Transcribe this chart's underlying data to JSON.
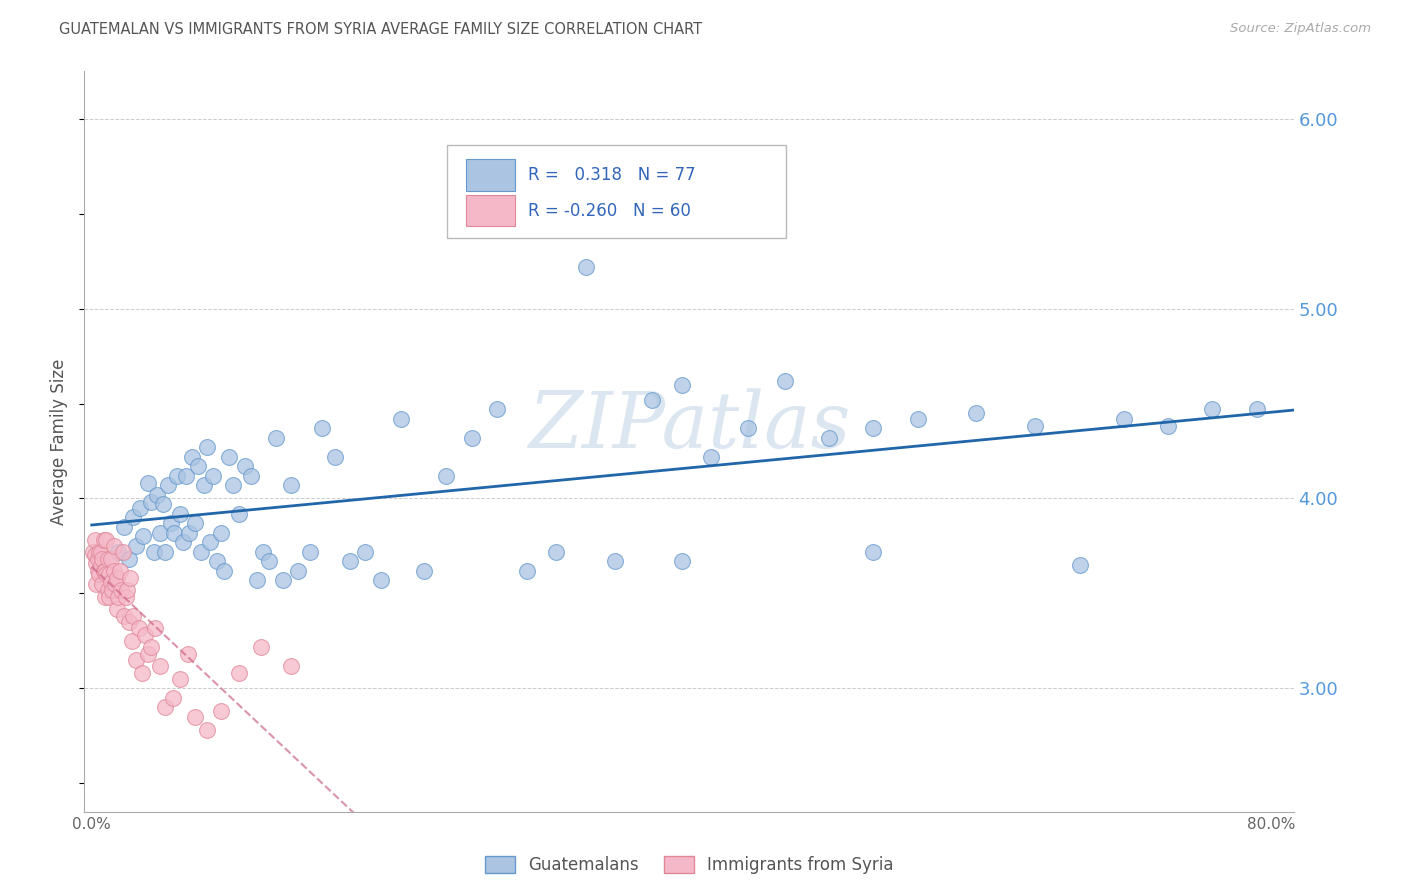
{
  "title": "GUATEMALAN VS IMMIGRANTS FROM SYRIA AVERAGE FAMILY SIZE CORRELATION CHART",
  "source_text": "Source: ZipAtlas.com",
  "ylabel": "Average Family Size",
  "xmin": -0.005,
  "xmax": 0.815,
  "ymin": 2.35,
  "ymax": 6.25,
  "yticks": [
    3.0,
    4.0,
    5.0,
    6.0
  ],
  "xticks": [
    0.0,
    0.1,
    0.2,
    0.3,
    0.4,
    0.5,
    0.6,
    0.7,
    0.8
  ],
  "xtick_labels": [
    "0.0%",
    "",
    "",
    "",
    "",
    "",
    "",
    "",
    "80.0%"
  ],
  "blue_r": "0.318",
  "blue_n": "77",
  "pink_r": "-0.260",
  "pink_n": "60",
  "blue_color": "#aac4e2",
  "blue_edge_color": "#6699cc",
  "blue_line_color": "#2266aa",
  "pink_color": "#f5b8c8",
  "pink_edge_color": "#e08898",
  "pink_line_color": "#cc6688",
  "background_color": "#ffffff",
  "grid_color": "#cccccc",
  "title_color": "#555555",
  "right_axis_color": "#5599dd",
  "legend_text_color": "#3366bb",
  "watermark_color": "#dce6f0",
  "legend_label_blue": "Guatemalans",
  "legend_label_pink": "Immigrants from Syria",
  "blue_x": [
    0.018,
    0.022,
    0.025,
    0.028,
    0.03,
    0.033,
    0.035,
    0.038,
    0.04,
    0.042,
    0.044,
    0.046,
    0.048,
    0.05,
    0.052,
    0.054,
    0.056,
    0.058,
    0.06,
    0.062,
    0.064,
    0.066,
    0.068,
    0.07,
    0.072,
    0.074,
    0.076,
    0.078,
    0.08,
    0.082,
    0.085,
    0.088,
    0.09,
    0.093,
    0.096,
    0.1,
    0.104,
    0.108,
    0.112,
    0.116,
    0.12,
    0.125,
    0.13,
    0.135,
    0.14,
    0.148,
    0.156,
    0.165,
    0.175,
    0.185,
    0.196,
    0.21,
    0.225,
    0.24,
    0.258,
    0.275,
    0.295,
    0.315,
    0.335,
    0.355,
    0.38,
    0.4,
    0.42,
    0.445,
    0.47,
    0.5,
    0.53,
    0.56,
    0.4,
    0.53,
    0.6,
    0.64,
    0.67,
    0.7,
    0.73,
    0.76,
    0.79
  ],
  "blue_y": [
    3.72,
    3.85,
    3.68,
    3.9,
    3.75,
    3.95,
    3.8,
    4.08,
    3.98,
    3.72,
    4.02,
    3.82,
    3.97,
    3.72,
    4.07,
    3.87,
    3.82,
    4.12,
    3.92,
    3.77,
    4.12,
    3.82,
    4.22,
    3.87,
    4.17,
    3.72,
    4.07,
    4.27,
    3.77,
    4.12,
    3.67,
    3.82,
    3.62,
    4.22,
    4.07,
    3.92,
    4.17,
    4.12,
    3.57,
    3.72,
    3.67,
    4.32,
    3.57,
    4.07,
    3.62,
    3.72,
    4.37,
    4.22,
    3.67,
    3.72,
    3.57,
    4.42,
    3.62,
    4.12,
    4.32,
    4.47,
    3.62,
    3.72,
    5.22,
    3.67,
    4.52,
    3.67,
    4.22,
    4.37,
    4.62,
    4.32,
    4.37,
    4.42,
    4.6,
    3.72,
    4.45,
    4.38,
    3.65,
    4.42,
    4.38,
    4.47,
    4.47
  ],
  "pink_x": [
    0.001,
    0.002,
    0.002,
    0.003,
    0.003,
    0.004,
    0.004,
    0.005,
    0.005,
    0.006,
    0.006,
    0.007,
    0.007,
    0.008,
    0.008,
    0.009,
    0.009,
    0.01,
    0.01,
    0.011,
    0.011,
    0.012,
    0.012,
    0.013,
    0.013,
    0.014,
    0.015,
    0.015,
    0.016,
    0.017,
    0.017,
    0.018,
    0.019,
    0.02,
    0.021,
    0.022,
    0.023,
    0.024,
    0.025,
    0.026,
    0.027,
    0.028,
    0.03,
    0.032,
    0.034,
    0.036,
    0.038,
    0.04,
    0.043,
    0.046,
    0.05,
    0.055,
    0.06,
    0.065,
    0.07,
    0.078,
    0.088,
    0.1,
    0.115,
    0.135
  ],
  "pink_y": [
    3.72,
    3.7,
    3.78,
    3.66,
    3.55,
    3.62,
    3.68,
    3.72,
    3.6,
    3.72,
    3.65,
    3.68,
    3.55,
    3.62,
    3.78,
    3.48,
    3.62,
    3.6,
    3.78,
    3.52,
    3.68,
    3.6,
    3.48,
    3.56,
    3.68,
    3.52,
    3.62,
    3.75,
    3.55,
    3.58,
    3.42,
    3.48,
    3.62,
    3.52,
    3.72,
    3.38,
    3.48,
    3.52,
    3.35,
    3.58,
    3.25,
    3.38,
    3.15,
    3.32,
    3.08,
    3.28,
    3.18,
    3.22,
    3.32,
    3.12,
    2.9,
    2.95,
    3.05,
    3.18,
    2.85,
    2.78,
    2.88,
    3.08,
    3.22,
    3.12
  ]
}
